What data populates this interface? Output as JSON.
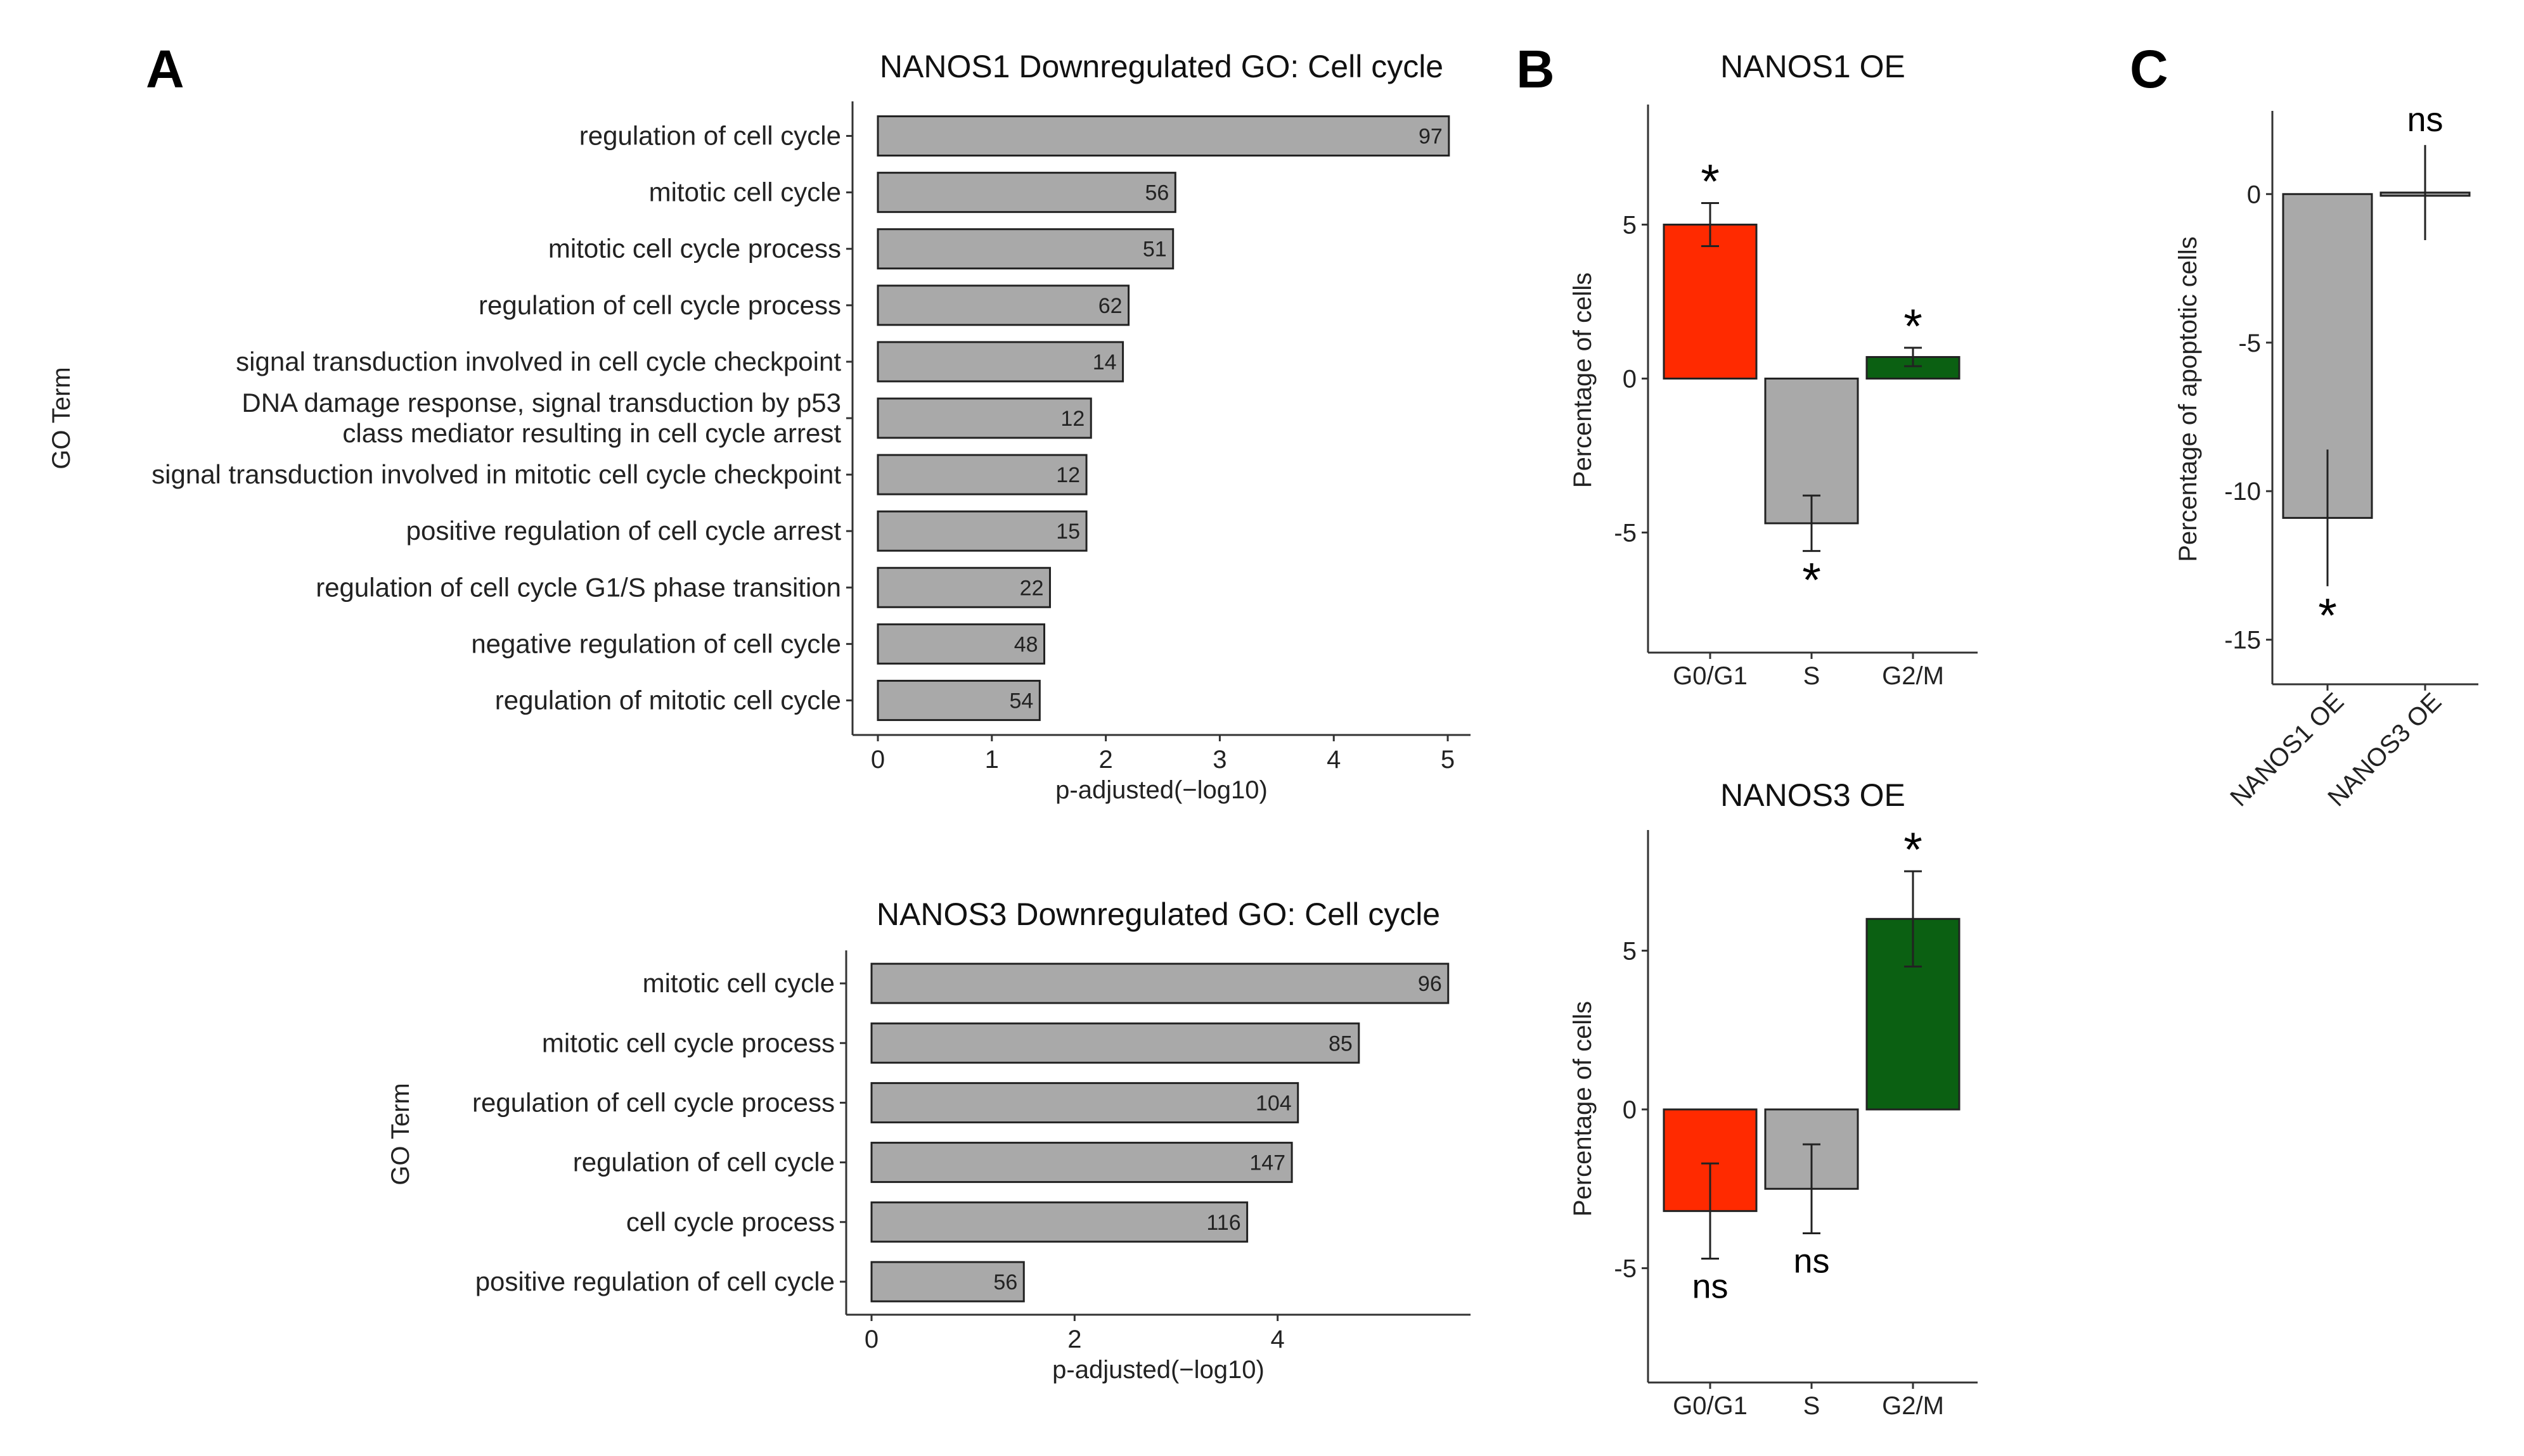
{
  "panel_labels": [
    "A",
    "B",
    "C"
  ],
  "colors": {
    "bar_grey": "#a9a9a9",
    "red": "#ff2a00",
    "green": "#0b6012",
    "outline": "#222222"
  },
  "chart_data": [
    {
      "id": "a1",
      "type": "bar",
      "orientation": "horizontal",
      "title": "NANOS1 Downregulated GO: Cell cycle",
      "xlabel": "p-adjusted(−log10)",
      "ylabel": "GO Term",
      "xlim": [
        0,
        5.2
      ],
      "xticks": [
        0,
        1,
        2,
        3,
        4,
        5
      ],
      "categories": [
        [
          "regulation of cell cycle"
        ],
        [
          "mitotic cell cycle"
        ],
        [
          "mitotic cell cycle process"
        ],
        [
          "regulation of cell cycle process"
        ],
        [
          "signal transduction involved in cell cycle checkpoint"
        ],
        [
          "DNA damage response, signal transduction by p53",
          "class mediator resulting in cell cycle arrest"
        ],
        [
          "signal transduction involved in mitotic cell cycle checkpoint"
        ],
        [
          "positive regulation of cell cycle arrest"
        ],
        [
          "regulation of cell cycle G1/S phase transition"
        ],
        [
          "negative regulation of cell cycle"
        ],
        [
          "regulation of mitotic cell cycle"
        ]
      ],
      "values": [
        5.01,
        2.61,
        2.59,
        2.2,
        2.15,
        1.87,
        1.83,
        1.83,
        1.51,
        1.46,
        1.42
      ],
      "labels": [
        "97",
        "56",
        "51",
        "62",
        "14",
        "12",
        "12",
        "15",
        "22",
        "48",
        "54"
      ]
    },
    {
      "id": "a2",
      "type": "bar",
      "orientation": "horizontal",
      "title": "NANOS3 Downregulated GO: Cell cycle",
      "xlabel": "p-adjusted(−log10)",
      "ylabel": "GO Term",
      "xlim": [
        0,
        5.9
      ],
      "xticks": [
        0,
        2,
        4
      ],
      "categories": [
        [
          "mitotic cell cycle"
        ],
        [
          "mitotic cell cycle process"
        ],
        [
          "regulation of cell cycle process"
        ],
        [
          "regulation of cell cycle"
        ],
        [
          "cell cycle process"
        ],
        [
          "positive regulation of cell cycle"
        ]
      ],
      "values": [
        5.68,
        4.8,
        4.2,
        4.14,
        3.7,
        1.5
      ],
      "labels": [
        "96",
        "85",
        "104",
        "147",
        "116",
        "56"
      ]
    },
    {
      "id": "b1",
      "type": "bar",
      "title": "NANOS1 OE",
      "ylabel": "Percentage of cells",
      "ylim": [
        -8.9,
        8.9
      ],
      "yticks": [
        -5,
        0,
        5
      ],
      "categories": [
        "G0/G1",
        "S",
        "G2/M"
      ],
      "values": [
        5.0,
        -4.7,
        0.7
      ],
      "errors": [
        0.7,
        0.9,
        0.3
      ],
      "significance": [
        "*",
        "*",
        "*"
      ],
      "bar_colors": [
        "#ff2a00",
        "#a9a9a9",
        "#0b6012"
      ]
    },
    {
      "id": "b2",
      "type": "bar",
      "title": "NANOS3 OE",
      "ylabel": "Percentage of cells",
      "ylim": [
        -8.6,
        8.8
      ],
      "yticks": [
        -5,
        0,
        5
      ],
      "categories": [
        "G0/G1",
        "S",
        "G2/M"
      ],
      "values": [
        -3.2,
        -2.5,
        6.0
      ],
      "errors": [
        1.5,
        1.4,
        1.5
      ],
      "significance": [
        "ns",
        "ns",
        "*"
      ],
      "bar_colors": [
        "#ff2a00",
        "#a9a9a9",
        "#0b6012"
      ]
    },
    {
      "id": "c",
      "type": "bar",
      "title": "",
      "ylabel": "Percentage of apoptotic cells",
      "ylim": [
        -16.5,
        2.8
      ],
      "yticks": [
        -15,
        -10,
        -5,
        0
      ],
      "categories": [
        "NANOS1 OE",
        "NANOS3 OE"
      ],
      "values": [
        -10.9,
        0.05
      ],
      "errors": [
        2.3,
        1.6
      ],
      "significance": [
        "*",
        "ns"
      ],
      "bar_colors": [
        "#a9a9a9",
        "#a9a9a9"
      ]
    }
  ]
}
